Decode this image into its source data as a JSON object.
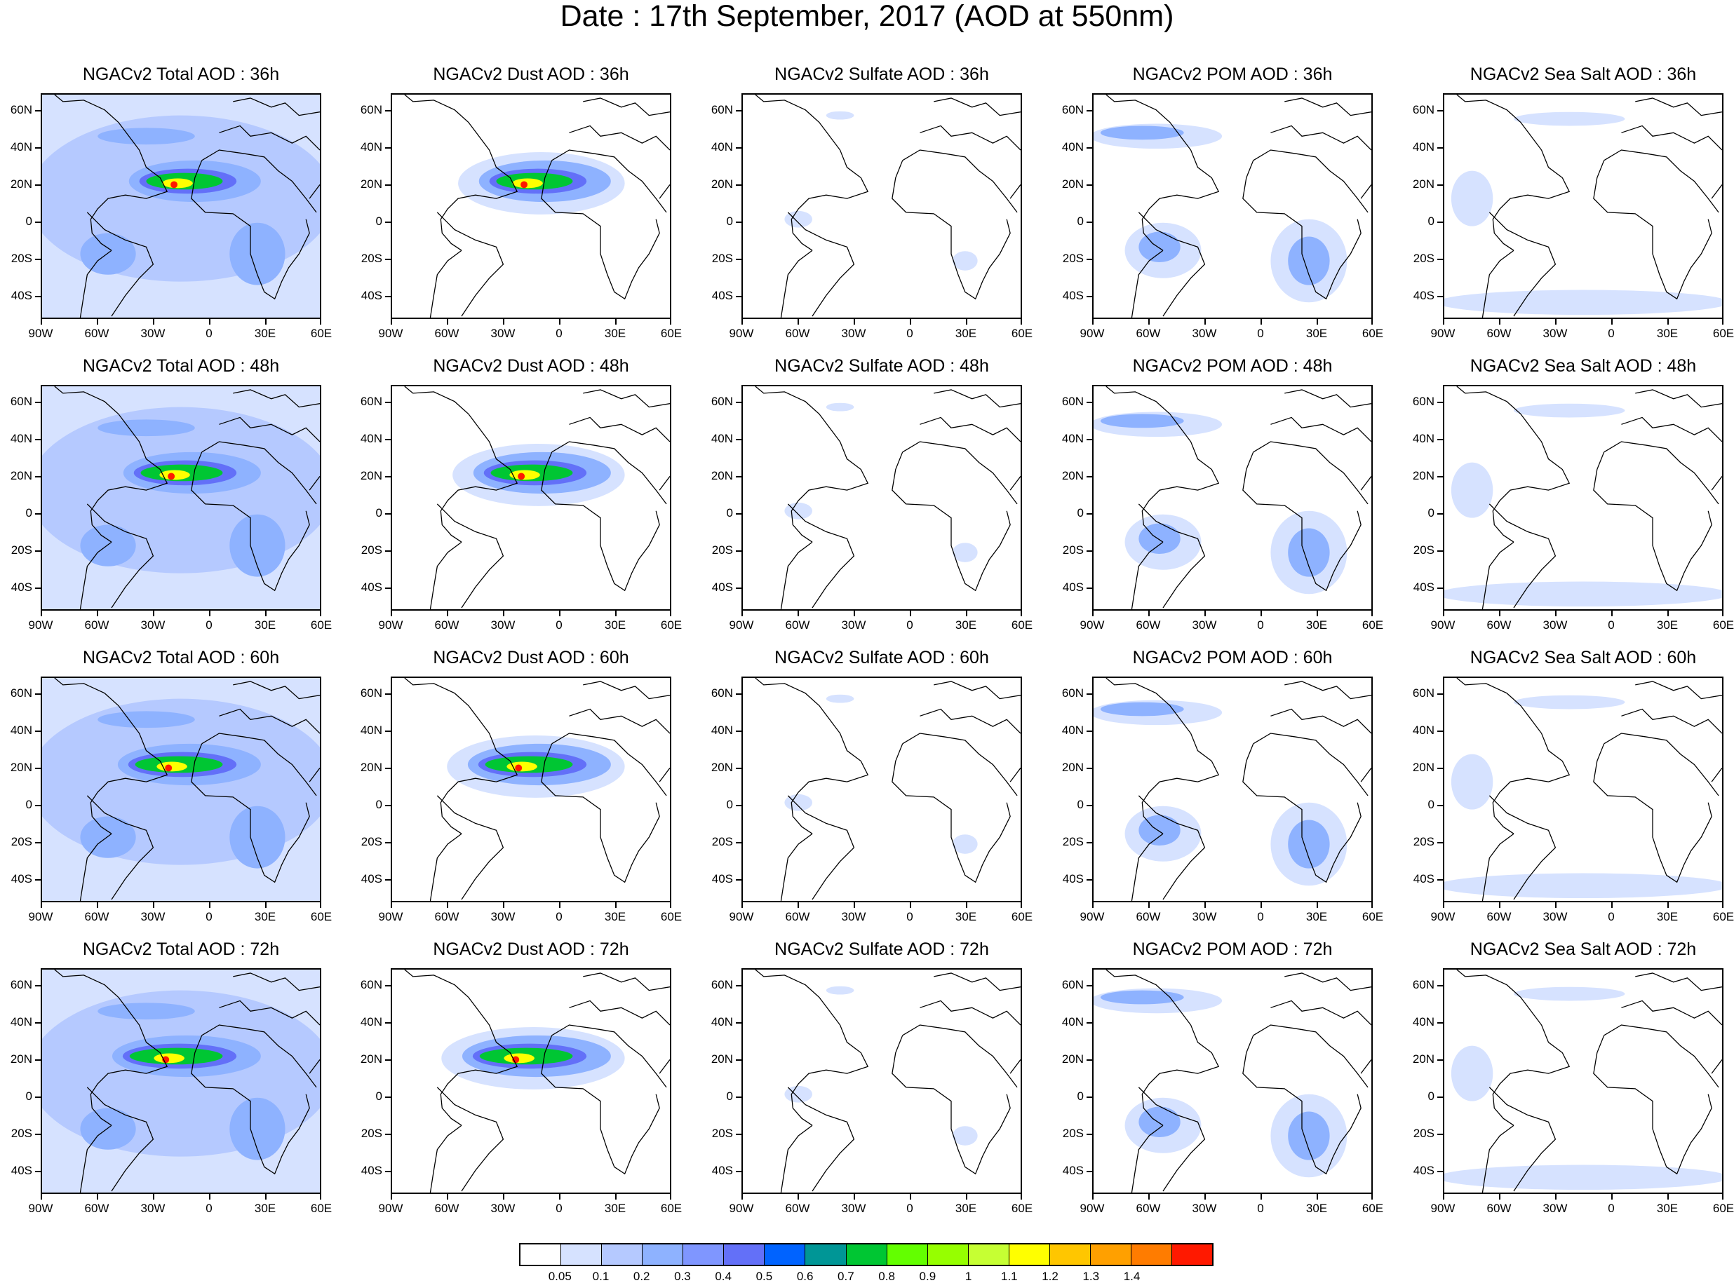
{
  "title": "Date : 17th September, 2017 (AOD at 550nm)",
  "panels": [
    [
      "NGACv2 Total AOD : 36h",
      "NGACv2 Dust AOD : 36h",
      "NGACv2 Sulfate AOD : 36h",
      "NGACv2 POM AOD : 36h",
      "NGACv2 Sea Salt AOD : 36h"
    ],
    [
      "NGACv2 Total AOD : 48h",
      "NGACv2 Dust AOD : 48h",
      "NGACv2 Sulfate AOD : 48h",
      "NGACv2 POM AOD : 48h",
      "NGACv2 Sea Salt AOD : 48h"
    ],
    [
      "NGACv2 Total AOD : 60h",
      "NGACv2 Dust AOD : 60h",
      "NGACv2 Sulfate AOD : 60h",
      "NGACv2 POM AOD : 60h",
      "NGACv2 Sea Salt AOD : 60h"
    ],
    [
      "NGACv2 Total AOD : 72h",
      "NGACv2 Dust AOD : 72h",
      "NGACv2 Sulfate AOD : 72h",
      "NGACv2 POM AOD : 72h",
      "NGACv2 Sea Salt  AOD : 72h"
    ]
  ],
  "lat_labels": [
    "60N",
    "40N",
    "20N",
    "0",
    "20S",
    "40S"
  ],
  "lon_labels": [
    "90W",
    "60W",
    "30W",
    "0",
    "30E",
    "60E"
  ],
  "colorbar": {
    "colors": [
      "#ffffff",
      "#d6e2ff",
      "#b5c9ff",
      "#8eb2ff",
      "#7f96ff",
      "#6370f8",
      "#0063ff",
      "#009696",
      "#00c633",
      "#63ff00",
      "#96ff00",
      "#c6ff33",
      "#ffff00",
      "#ffc600",
      "#ffa000",
      "#ff7c00",
      "#ff1900"
    ],
    "labels": [
      "0.05",
      "0.1",
      "0.2",
      "0.3",
      "0.4",
      "0.5",
      "0.6",
      "0.7",
      "0.8",
      "0.9",
      "1",
      "1.1",
      "1.2",
      "1.3",
      "1.4"
    ]
  },
  "field_colors": {
    "land_outline": "#000000",
    "light": "#d6e2ff",
    "low": "#b5c9ff",
    "mid": "#8eb2ff",
    "moderate": "#6370f8",
    "green": "#00c633",
    "yellow": "#ffff00",
    "red": "#ff1900"
  }
}
